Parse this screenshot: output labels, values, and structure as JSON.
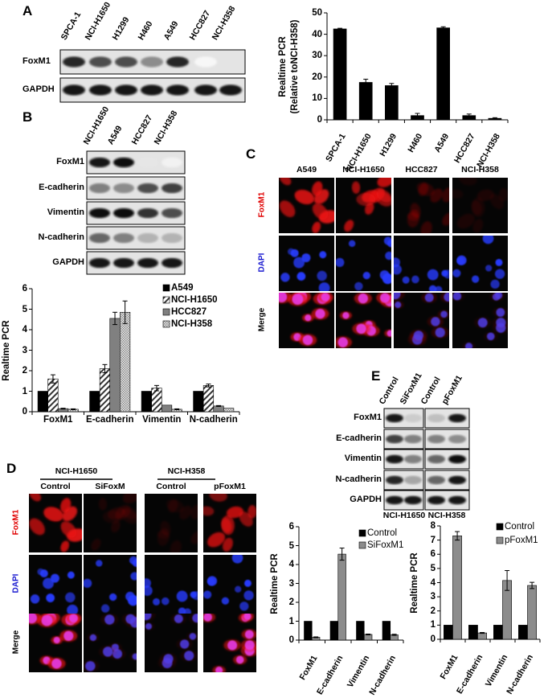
{
  "panels": {
    "A": "A",
    "B": "B",
    "C": "C",
    "D": "D",
    "E": "E"
  },
  "blot_A": {
    "lanes": [
      "SPCA-1",
      "NCI-H1650",
      "H1299",
      "H460",
      "A549",
      "HCC827",
      "NCI-H358"
    ],
    "rows": [
      "FoxM1",
      "GAPDH"
    ]
  },
  "blot_B": {
    "lanes": [
      "NCI-H1650",
      "A549",
      "HCC827",
      "NCI-H358"
    ],
    "rows": [
      "FoxM1",
      "E-cadherin",
      "Vimentin",
      "N-cadherin",
      "GAPDH"
    ]
  },
  "micro_C": {
    "columns": [
      "A549",
      "NCI-H1650",
      "HCC827",
      "NCI-H358"
    ],
    "rows": [
      "FoxM1",
      "DAPI",
      "Merge"
    ],
    "row_colors": [
      "#e00000",
      "#1a1ad0",
      "#000000"
    ]
  },
  "blot_E": {
    "lanes": [
      "Control",
      "SiFoxM1",
      "Control",
      "pFoxM1"
    ],
    "rows": [
      "FoxM1",
      "E-cadherin",
      "Vimentin",
      "N-cadherin",
      "GAPDH"
    ],
    "groups": [
      "NCI-H1650",
      "NCI-H358"
    ]
  },
  "micro_D": {
    "groups": [
      "NCI-H1650",
      "NCI-H358"
    ],
    "columns": [
      "Control",
      "SiFoxM",
      "Control",
      "pFoxM1"
    ],
    "rows": [
      "FoxM1",
      "DAPI",
      "Merge"
    ],
    "row_colors": [
      "#e00000",
      "#1a1ad0",
      "#000000"
    ]
  },
  "chart_data": [
    {
      "type": "bar",
      "panel": "A",
      "categories": [
        "SPCA-1",
        "NCI-H1650",
        "H1299",
        "H460",
        "A549",
        "HCC827",
        "NCI-H358"
      ],
      "values": [
        42.5,
        17.5,
        16,
        2,
        43,
        2,
        0.7
      ],
      "errors": [
        0.3,
        1.5,
        1,
        1,
        0.5,
        0.7,
        0.3
      ],
      "ylabel": "Realtime PCR",
      "ylabel2": "(Relative toNCI-H358)",
      "ylim": [
        0,
        50
      ],
      "yticks": [
        "0",
        "10",
        "20",
        "30",
        "40",
        "50"
      ],
      "grid": false
    },
    {
      "type": "bar",
      "panel": "B",
      "categories": [
        "FoxM1",
        "E-cadherin",
        "Vimentin",
        "N-cadherin"
      ],
      "series": [
        {
          "name": "A549",
          "values": [
            1,
            1,
            1,
            1
          ],
          "errors": [
            0,
            0,
            0,
            0
          ]
        },
        {
          "name": "NCI-H1650",
          "values": [
            1.6,
            2.1,
            1.15,
            1.28
          ],
          "errors": [
            0.2,
            0.2,
            0.13,
            0.07
          ]
        },
        {
          "name": "HCC827",
          "values": [
            0.15,
            4.55,
            0.32,
            0.28
          ],
          "errors": [
            0.02,
            0.3,
            0,
            0.02
          ]
        },
        {
          "name": "NCI-H358",
          "values": [
            0.12,
            4.85,
            0.12,
            0.17
          ],
          "errors": [
            0.02,
            0.55,
            0.02,
            0
          ]
        }
      ],
      "ylabel": "Realtime PCR",
      "ylim": [
        0,
        6
      ],
      "yticks": [
        "0",
        "1",
        "2",
        "3",
        "4",
        "5",
        "6"
      ],
      "legend": "top-right",
      "grid": false
    },
    {
      "type": "bar",
      "panel": "D-left",
      "categories": [
        "FoxM1",
        "E-cadherin",
        "Vimentin",
        "N-cadherin"
      ],
      "series": [
        {
          "name": "Control",
          "values": [
            1,
            1,
            1,
            1
          ],
          "errors": [
            0,
            0,
            0,
            0
          ]
        },
        {
          "name": "SiFoxM1",
          "values": [
            0.15,
            4.55,
            0.3,
            0.28
          ],
          "errors": [
            0.02,
            0.32,
            0.02,
            0.03
          ]
        }
      ],
      "ylabel": "Realtime PCR",
      "ylim": [
        0,
        6
      ],
      "yticks": [
        "0",
        "1",
        "2",
        "3",
        "4",
        "5",
        "6"
      ],
      "legend": "top-right",
      "grid": false
    },
    {
      "type": "bar",
      "panel": "D-right",
      "categories": [
        "FoxM1",
        "E-cadherin",
        "Vimentin",
        "N-cadherin"
      ],
      "series": [
        {
          "name": "Control",
          "values": [
            1,
            1,
            1,
            1
          ],
          "errors": [
            0,
            0,
            0,
            0
          ]
        },
        {
          "name": "pFoxM1",
          "values": [
            7.3,
            0.45,
            4.15,
            3.8
          ],
          "errors": [
            0.3,
            0.03,
            0.7,
            0.22
          ]
        }
      ],
      "ylabel": "Realtime PCR",
      "ylim": [
        0,
        8
      ],
      "yticks": [
        "0",
        "1",
        "2",
        "3",
        "4",
        "5",
        "6",
        "7",
        "8"
      ],
      "legend": "top-right",
      "grid": false
    }
  ]
}
